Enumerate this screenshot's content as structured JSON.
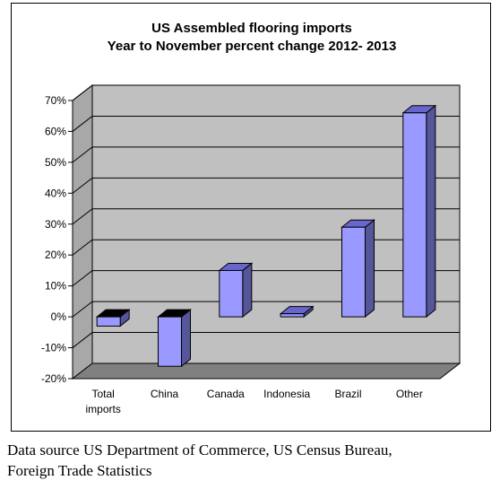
{
  "chart_data": {
    "type": "bar",
    "title_lines": [
      "US Assembled flooring imports",
      "Year to November percent change 2012- 2013"
    ],
    "categories": [
      [
        "Total",
        "imports"
      ],
      [
        "China"
      ],
      [
        "Canada"
      ],
      [
        "Indonesia"
      ],
      [
        "Brazil"
      ],
      [
        "Other"
      ]
    ],
    "values": [
      -3,
      -16,
      15,
      1,
      29,
      66
    ],
    "ylim": [
      -20,
      70
    ],
    "yticks": [
      -20,
      -10,
      0,
      10,
      20,
      30,
      40,
      50,
      60,
      70
    ],
    "ytick_labels": [
      "-20%",
      "-10%",
      "0%",
      "10%",
      "20%",
      "30%",
      "40%",
      "50%",
      "60%",
      "70%"
    ],
    "grid": true,
    "colors": {
      "bar_front": "#9999ff",
      "bar_side": "#55559a",
      "bar_top": "#6666cc",
      "wall": "#c0c0c0",
      "floor": "#808080"
    }
  },
  "caption": {
    "line1": "Data source US Department of Commerce, US Census Bureau,",
    "line2": "Foreign Trade Statistics"
  }
}
